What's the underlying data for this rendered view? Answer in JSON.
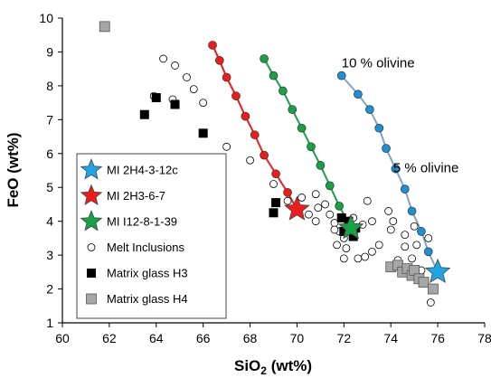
{
  "chart_data": {
    "type": "scatter",
    "title": "",
    "xlabel": "SiO",
    "xlabel_sub": "2",
    "xlabel_unit": " (wt%)",
    "ylabel": "FeO (wt%)",
    "xlim": [
      60,
      78
    ],
    "ylim": [
      1,
      10
    ],
    "xticks": [
      60,
      62,
      64,
      66,
      68,
      70,
      72,
      74,
      76,
      78
    ],
    "yticks": [
      1,
      2,
      3,
      4,
      5,
      6,
      7,
      8,
      9,
      10
    ],
    "grid": false,
    "legend_position": "lower-left",
    "annotations": [
      {
        "text": "10 % olivine",
        "x": 71.9,
        "y": 8.55
      },
      {
        "text": "5 % olivine",
        "x": 74.1,
        "y": 5.45
      }
    ],
    "series": [
      {
        "name": "MI 2H4-3-12c",
        "marker": "star",
        "color": "#1ea5e6",
        "values": [
          [
            76.0,
            2.5
          ]
        ]
      },
      {
        "name": "MI 2H3-6-7",
        "marker": "star",
        "color": "#ee1c1c",
        "values": [
          [
            70.0,
            4.35
          ]
        ]
      },
      {
        "name": "MI I12-8-1-39",
        "marker": "star",
        "color": "#1aa046",
        "values": [
          [
            72.3,
            3.8
          ]
        ]
      },
      {
        "name": "Melt Inclusions",
        "marker": "open-circle",
        "color": "#000000",
        "values": [
          [
            64.3,
            8.8
          ],
          [
            64.8,
            8.6
          ],
          [
            65.3,
            8.25
          ],
          [
            65.6,
            7.9
          ],
          [
            63.9,
            7.7
          ],
          [
            64.7,
            7.6
          ],
          [
            66.0,
            7.5
          ],
          [
            67.0,
            6.2
          ],
          [
            68.0,
            5.8
          ],
          [
            69.0,
            5.1
          ],
          [
            69.6,
            4.6
          ],
          [
            70.2,
            4.7
          ],
          [
            70.8,
            4.8
          ],
          [
            70.9,
            4.4
          ],
          [
            71.2,
            4.5
          ],
          [
            70.5,
            4.2
          ],
          [
            70.8,
            4.0
          ],
          [
            71.4,
            4.2
          ],
          [
            71.6,
            3.95
          ],
          [
            71.8,
            3.7
          ],
          [
            72.0,
            3.5
          ],
          [
            71.7,
            3.3
          ],
          [
            72.4,
            4.1
          ],
          [
            72.8,
            3.9
          ],
          [
            73.0,
            4.6
          ],
          [
            73.2,
            4.0
          ],
          [
            73.9,
            4.3
          ],
          [
            74.1,
            4.0
          ],
          [
            74.0,
            3.75
          ],
          [
            74.6,
            3.6
          ],
          [
            75.0,
            3.85
          ],
          [
            75.6,
            3.5
          ],
          [
            73.5,
            3.3
          ],
          [
            73.2,
            3.1
          ],
          [
            74.6,
            3.25
          ],
          [
            75.1,
            3.3
          ],
          [
            74.3,
            2.85
          ],
          [
            74.9,
            2.9
          ],
          [
            75.3,
            2.55
          ],
          [
            75.1,
            2.4
          ],
          [
            75.7,
            1.6
          ],
          [
            72.0,
            2.9
          ],
          [
            72.6,
            2.9
          ],
          [
            72.9,
            2.95
          ],
          [
            71.6,
            3.75
          ],
          [
            72.1,
            3.2
          ]
        ]
      },
      {
        "name": "Matrix glass H3",
        "marker": "filled-square",
        "color": "#000000",
        "values": [
          [
            63.5,
            7.15
          ],
          [
            64.0,
            7.65
          ],
          [
            64.8,
            7.45
          ],
          [
            66.0,
            6.6
          ],
          [
            69.1,
            4.55
          ],
          [
            69.0,
            4.25
          ],
          [
            71.9,
            4.1
          ],
          [
            72.2,
            4.0
          ],
          [
            72.0,
            3.7
          ],
          [
            72.4,
            3.55
          ],
          [
            72.5,
            3.8
          ]
        ]
      },
      {
        "name": "Matrix glass H4",
        "marker": "gray-square",
        "color": "#a6a6a6",
        "values": [
          [
            61.8,
            9.75
          ],
          [
            74.0,
            2.65
          ],
          [
            74.3,
            2.7
          ],
          [
            74.5,
            2.5
          ],
          [
            74.7,
            2.6
          ],
          [
            74.9,
            2.4
          ],
          [
            75.0,
            2.55
          ],
          [
            75.2,
            2.3
          ],
          [
            75.4,
            2.2
          ],
          [
            75.8,
            2.0
          ]
        ]
      }
    ],
    "trend_lines": [
      {
        "color": "#1e90d6",
        "line_color": "#7fa4c8",
        "points": [
          [
            76.0,
            2.5
          ],
          [
            75.6,
            3.1
          ],
          [
            75.3,
            3.7
          ],
          [
            74.9,
            4.3
          ],
          [
            74.6,
            4.95
          ],
          [
            74.2,
            5.55
          ],
          [
            73.8,
            6.15
          ],
          [
            73.5,
            6.75
          ],
          [
            73.1,
            7.3
          ],
          [
            72.6,
            7.75
          ],
          [
            71.9,
            8.3
          ]
        ]
      },
      {
        "color": "#ee1c1c",
        "line_color": "#ee1c1c",
        "points": [
          [
            70.0,
            4.35
          ],
          [
            69.6,
            4.85
          ],
          [
            69.1,
            5.4
          ],
          [
            68.6,
            5.95
          ],
          [
            68.2,
            6.55
          ],
          [
            67.8,
            7.1
          ],
          [
            67.4,
            7.7
          ],
          [
            67.0,
            8.25
          ],
          [
            66.7,
            8.75
          ],
          [
            66.4,
            9.2
          ]
        ]
      },
      {
        "color": "#1aa046",
        "line_color": "#1aa046",
        "points": [
          [
            72.3,
            3.8
          ],
          [
            71.8,
            4.45
          ],
          [
            71.4,
            5.05
          ],
          [
            71.0,
            5.65
          ],
          [
            70.6,
            6.2
          ],
          [
            70.2,
            6.75
          ],
          [
            69.8,
            7.3
          ],
          [
            69.4,
            7.85
          ],
          [
            69.0,
            8.3
          ],
          [
            68.6,
            8.8
          ]
        ]
      }
    ]
  }
}
